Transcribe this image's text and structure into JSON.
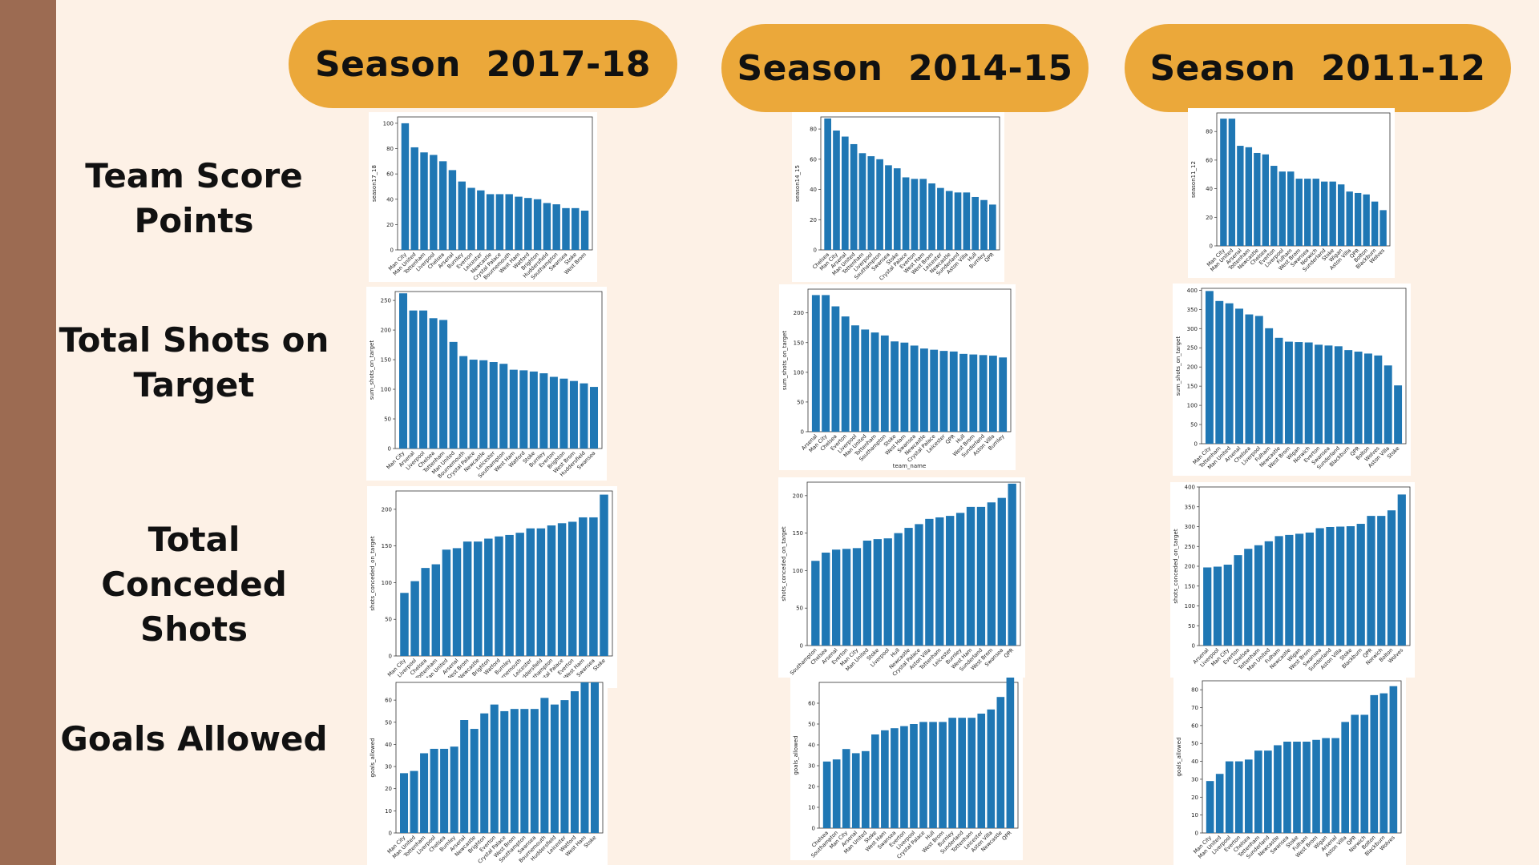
{
  "slide": {
    "seasons": [
      "Season  2017-18",
      "Season  2014-15",
      "Season  2011-12"
    ],
    "row_labels": [
      [
        "Team Score",
        "Points"
      ],
      [
        "Total Shots on",
        "Target"
      ],
      [
        "Total Conceded",
        "Shots"
      ],
      [
        "Goals Allowed"
      ]
    ],
    "colors": {
      "bar": "#1f77b4",
      "pill": "#eba83a",
      "accent_bar": "#9c6b52",
      "background": "#fdf1e6"
    }
  },
  "chart_data": [
    {
      "type": "bar",
      "season": "2017-18",
      "metric": "points",
      "ylabel": "season17_18",
      "xlabel": "",
      "ylim": [
        0,
        105
      ],
      "yticks": [
        0,
        20,
        40,
        60,
        80,
        100
      ],
      "categories": [
        "Man City",
        "Man United",
        "Tottenham",
        "Liverpool",
        "Chelsea",
        "Arsenal",
        "Burnley",
        "Everton",
        "Leicester",
        "Newcastle",
        "Crystal Palace",
        "Bournemouth",
        "West Ham",
        "Watford",
        "Brighton",
        "Huddersfield",
        "Southampton",
        "Swansea",
        "Stoke",
        "West Brom"
      ],
      "values": [
        100,
        81,
        77,
        75,
        70,
        63,
        54,
        49,
        47,
        44,
        44,
        44,
        42,
        41,
        40,
        37,
        36,
        33,
        33,
        31
      ]
    },
    {
      "type": "bar",
      "season": "2014-15",
      "metric": "points",
      "ylabel": "season14_15",
      "xlabel": "",
      "ylim": [
        0,
        88
      ],
      "yticks": [
        0,
        20,
        40,
        60,
        80
      ],
      "categories": [
        "Chelsea",
        "Man City",
        "Arsenal",
        "Man United",
        "Tottenham",
        "Liverpool",
        "Southampton",
        "Swansea",
        "Stoke",
        "Crystal Palace",
        "Everton",
        "West Ham",
        "West Brom",
        "Leicester",
        "Newcastle",
        "Sunderland",
        "Aston Villa",
        "Hull",
        "Burnley",
        "QPR"
      ],
      "values": [
        87,
        79,
        75,
        70,
        64,
        62,
        60,
        56,
        54,
        48,
        47,
        47,
        44,
        41,
        39,
        38,
        38,
        35,
        33,
        30
      ]
    },
    {
      "type": "bar",
      "season": "2011-12",
      "metric": "points",
      "ylabel": "season11_12",
      "xlabel": "",
      "ylim": [
        0,
        93
      ],
      "yticks": [
        0,
        20,
        40,
        60,
        80
      ],
      "categories": [
        "Man City",
        "Man United",
        "Arsenal",
        "Tottenham",
        "Newcastle",
        "Chelsea",
        "Everton",
        "Liverpool",
        "Fulham",
        "West Brom",
        "Swansea",
        "Norwich",
        "Sunderland",
        "Stoke",
        "Wigan",
        "Aston Villa",
        "QPR",
        "Bolton",
        "Blackburn",
        "Wolves"
      ],
      "values": [
        89,
        89,
        70,
        69,
        65,
        64,
        56,
        52,
        52,
        47,
        47,
        47,
        45,
        45,
        43,
        38,
        37,
        36,
        31,
        25
      ]
    },
    {
      "type": "bar",
      "season": "2017-18",
      "metric": "sum_shots_on_target",
      "ylabel": "sum_shots_on_target",
      "xlabel": "",
      "ylim": [
        0,
        265
      ],
      "yticks": [
        0,
        50,
        100,
        150,
        200,
        250
      ],
      "categories": [
        "Man City",
        "Arsenal",
        "Liverpool",
        "Chelsea",
        "Tottenham",
        "Man United",
        "Bournemouth",
        "Crystal Palace",
        "Newcastle",
        "Leicester",
        "Southampton",
        "West Ham",
        "Watford",
        "Stoke",
        "Burnley",
        "Everton",
        "Brighton",
        "West Brom",
        "Huddersfield",
        "Swansea"
      ],
      "values": [
        262,
        233,
        233,
        220,
        217,
        180,
        156,
        150,
        149,
        146,
        143,
        133,
        132,
        130,
        127,
        121,
        118,
        114,
        110,
        104
      ]
    },
    {
      "type": "bar",
      "season": "2014-15",
      "metric": "sum_shots_on_target",
      "ylabel": "sum_shots_on_target",
      "xlabel": "team_name",
      "ylim": [
        0,
        240
      ],
      "yticks": [
        0,
        50,
        100,
        150,
        200
      ],
      "categories": [
        "Arsenal",
        "Man City",
        "Chelsea",
        "Everton",
        "Liverpool",
        "Man United",
        "Tottenham",
        "Southampton",
        "Stoke",
        "West Ham",
        "Swansea",
        "Newcastle",
        "Crystal Palace",
        "Leicester",
        "QPR",
        "Hull",
        "West Brom",
        "Sunderland",
        "Aston Villa",
        "Burnley"
      ],
      "values": [
        230,
        230,
        211,
        194,
        179,
        172,
        167,
        162,
        152,
        150,
        145,
        140,
        138,
        136,
        135,
        131,
        130,
        129,
        128,
        125
      ]
    },
    {
      "type": "bar",
      "season": "2011-12",
      "metric": "sum_shots_on_target",
      "ylabel": "sum_shots_on_target",
      "xlabel": "",
      "ylim": [
        0,
        405
      ],
      "yticks": [
        0,
        50,
        100,
        150,
        200,
        250,
        300,
        350,
        400
      ],
      "categories": [
        "Man City",
        "Tottenham",
        "Man United",
        "Arsenal",
        "Chelsea",
        "Liverpool",
        "Fulham",
        "Newcastle",
        "West Brom",
        "Wigan",
        "Norwich",
        "Everton",
        "Swansea",
        "Sunderland",
        "Blackburn",
        "QPR",
        "Bolton",
        "Wolves",
        "Aston Villa",
        "Stoke"
      ],
      "values": [
        398,
        372,
        366,
        352,
        337,
        333,
        301,
        276,
        266,
        265,
        264,
        258,
        256,
        254,
        244,
        240,
        235,
        230,
        204,
        152
      ]
    },
    {
      "type": "bar",
      "season": "2017-18",
      "metric": "shots_conceded_on_target",
      "ylabel": "shots_conceded_on_target",
      "xlabel": "",
      "ylim": [
        0,
        225
      ],
      "yticks": [
        0,
        50,
        100,
        150,
        200
      ],
      "categories": [
        "Man City",
        "Liverpool",
        "Chelsea",
        "Tottenham",
        "Man United",
        "Arsenal",
        "West Brom",
        "Newcastle",
        "Brighton",
        "Watford",
        "Burnley",
        "Bournemouth",
        "Leicester",
        "Huddersfield",
        "Southampton",
        "Crystal Palace",
        "Everton",
        "West Ham",
        "Swansea",
        "Stoke"
      ],
      "values": [
        86,
        102,
        120,
        125,
        145,
        147,
        156,
        156,
        160,
        163,
        165,
        168,
        174,
        174,
        178,
        181,
        183,
        189,
        189,
        220
      ]
    },
    {
      "type": "bar",
      "season": "2014-15",
      "metric": "shots_conceded_on_target",
      "ylabel": "shots_conceded_on_target",
      "xlabel": "",
      "ylim": [
        0,
        218
      ],
      "yticks": [
        0,
        50,
        100,
        150,
        200
      ],
      "categories": [
        "Southampton",
        "Chelsea",
        "Arsenal",
        "Everton",
        "Man City",
        "Man United",
        "Stoke",
        "Liverpool",
        "Hull",
        "Newcastle",
        "Crystal Palace",
        "Aston Villa",
        "Tottenham",
        "Leicester",
        "Burnley",
        "West Ham",
        "Sunderland",
        "West Brom",
        "Swansea",
        "QPR"
      ],
      "values": [
        113,
        124,
        128,
        129,
        130,
        140,
        142,
        143,
        150,
        157,
        162,
        169,
        171,
        173,
        177,
        185,
        185,
        191,
        197,
        216
      ]
    },
    {
      "type": "bar",
      "season": "2011-12",
      "metric": "shots_conceded_on_target",
      "ylabel": "shots_conceded_on_target",
      "xlabel": "",
      "ylim": [
        0,
        400
      ],
      "yticks": [
        0,
        50,
        100,
        150,
        200,
        250,
        300,
        350,
        400
      ],
      "categories": [
        "Arsenal",
        "Liverpool",
        "Man City",
        "Everton",
        "Chelsea",
        "Tottenham",
        "Man United",
        "Fulham",
        "Newcastle",
        "Wigan",
        "West Brom",
        "Swansea",
        "Sunderland",
        "Aston Villa",
        "Stoke",
        "Blackburn",
        "QPR",
        "Norwich",
        "Bolton",
        "Wolves"
      ],
      "values": [
        197,
        199,
        204,
        228,
        244,
        253,
        263,
        276,
        279,
        282,
        285,
        296,
        299,
        300,
        301,
        307,
        327,
        327,
        341,
        381
      ]
    },
    {
      "type": "bar",
      "season": "2017-18",
      "metric": "goals_allowed",
      "ylabel": "goals_allowed",
      "xlabel": "",
      "ylim": [
        0,
        68
      ],
      "yticks": [
        0,
        10,
        20,
        30,
        40,
        50,
        60
      ],
      "categories": [
        "Man City",
        "Man United",
        "Tottenham",
        "Liverpool",
        "Chelsea",
        "Burnley",
        "Arsenal",
        "Newcastle",
        "Brighton",
        "Everton",
        "Crystal Palace",
        "West Brom",
        "Southampton",
        "Swansea",
        "Bournemouth",
        "Huddersfield",
        "Leicester",
        "Watford",
        "West Ham",
        "Stoke"
      ],
      "values": [
        27,
        28,
        36,
        38,
        38,
        39,
        51,
        47,
        54,
        58,
        55,
        56,
        56,
        56,
        61,
        58,
        60,
        64,
        68,
        68
      ]
    },
    {
      "type": "bar",
      "season": "2014-15",
      "metric": "goals_allowed",
      "ylabel": "goals_allowed",
      "xlabel": "",
      "ylim": [
        0,
        70
      ],
      "yticks": [
        0,
        10,
        20,
        30,
        40,
        50,
        60
      ],
      "categories": [
        "Chelsea",
        "Southampton",
        "Man City",
        "Arsenal",
        "Man United",
        "Stoke",
        "West Ham",
        "Swansea",
        "Everton",
        "Liverpool",
        "Crystal Palace",
        "Hull",
        "West Brom",
        "Burnley",
        "Sunderland",
        "Tottenham",
        "Leicester",
        "Aston Villa",
        "Newcastle",
        "QPR"
      ],
      "values": [
        32,
        33,
        38,
        36,
        37,
        45,
        47,
        48,
        49,
        50,
        51,
        51,
        51,
        53,
        53,
        53,
        55,
        57,
        63,
        73
      ]
    },
    {
      "type": "bar",
      "season": "2011-12",
      "metric": "goals_allowed",
      "ylabel": "goals_allowed",
      "xlabel": "",
      "ylim": [
        0,
        85
      ],
      "yticks": [
        0,
        10,
        20,
        30,
        40,
        50,
        60,
        70,
        80
      ],
      "categories": [
        "Man City",
        "Man United",
        "Liverpool",
        "Everton",
        "Chelsea",
        "Tottenham",
        "Sunderland",
        "Newcastle",
        "Swansea",
        "Stoke",
        "Fulham",
        "West Brom",
        "Wigan",
        "Arsenal",
        "Aston Villa",
        "QPR",
        "Norwich",
        "Bolton",
        "Blackburn",
        "Wolves"
      ],
      "values": [
        29,
        33,
        40,
        40,
        41,
        46,
        46,
        49,
        51,
        51,
        51,
        52,
        53,
        53,
        62,
        66,
        66,
        77,
        78,
        82
      ]
    }
  ]
}
